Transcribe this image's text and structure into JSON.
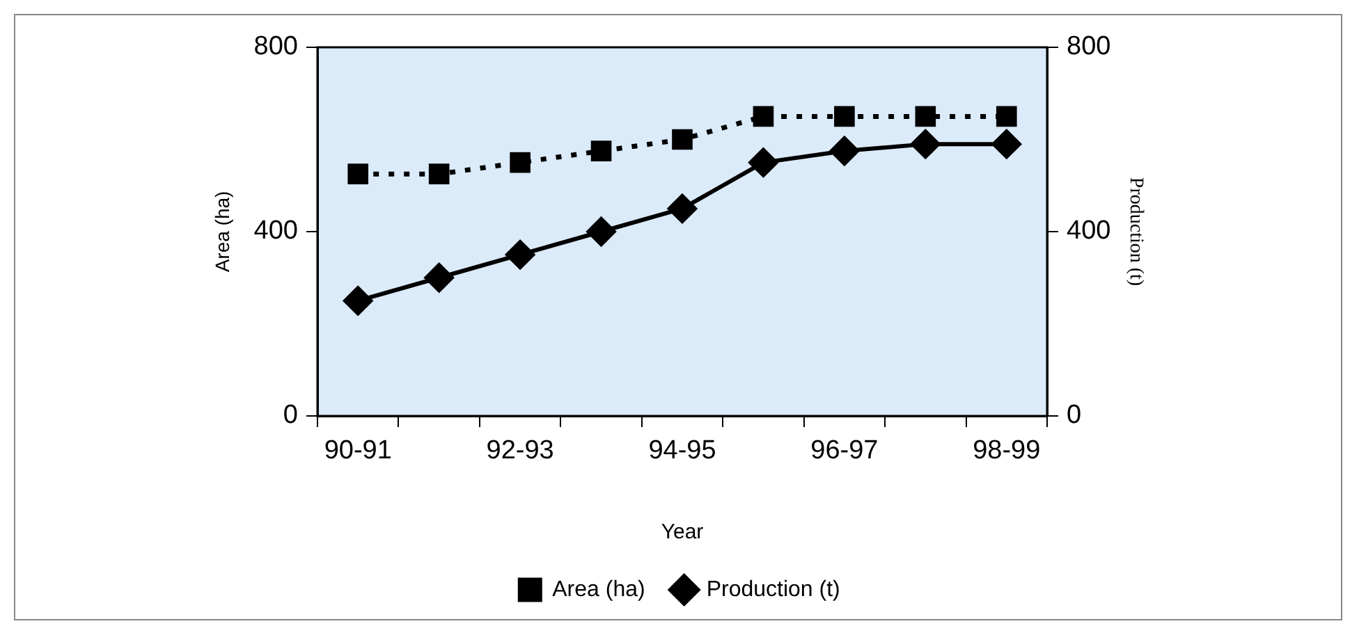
{
  "chart_data": {
    "type": "line",
    "xlabel": "Year",
    "ylabel": "Area (ha)",
    "y2label": "Production (t)",
    "categories": [
      "90-91",
      null,
      "92-93",
      null,
      "94-95",
      null,
      "96-97",
      null,
      "98-99"
    ],
    "series": [
      {
        "name": "Area (ha)",
        "color": "#000000",
        "marker": "square",
        "line_style": "dotted",
        "values": [
          525,
          525,
          550,
          575,
          600,
          650,
          650,
          650,
          650
        ]
      },
      {
        "name": "Production (t)",
        "color": "#000000",
        "marker": "diamond",
        "line_style": "solid",
        "axis": "y2",
        "values": [
          250,
          300,
          350,
          400,
          450,
          550,
          575,
          590,
          590
        ]
      }
    ],
    "ylim": [
      0,
      800
    ],
    "yticks": [
      0,
      400,
      800
    ],
    "y2lim": [
      0,
      800
    ],
    "y2ticks": [
      0,
      400,
      800
    ],
    "grid": false,
    "legend": "bottom"
  }
}
